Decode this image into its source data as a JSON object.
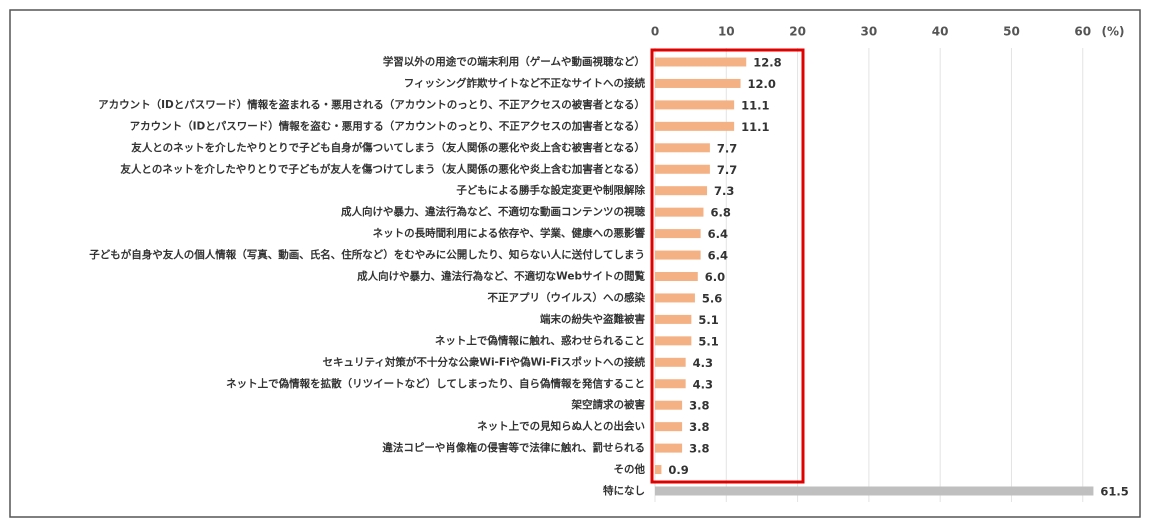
{
  "chart_data": {
    "type": "bar",
    "orientation": "horizontal",
    "unit_label": "(%)",
    "categories": [
      "学習以外の用途での端末利用（ゲームや動画視聴など）",
      "フィッシング詐欺サイトなど不正なサイトへの接続",
      "アカウント（IDとパスワード）情報を盗まれる・悪用される（アカウントのっとり、不正アクセスの被害者となる）",
      "アカウント（IDとパスワード）情報を盗む・悪用する（アカウントのっとり、不正アクセスの加害者となる）",
      "友人とのネットを介したやりとりで子ども自身が傷ついてしまう（友人関係の悪化や炎上含む被害者となる）",
      "友人とのネットを介したやりとりで子どもが友人を傷つけてしまう（友人関係の悪化や炎上含む加害者となる）",
      "子どもによる勝手な設定変更や制限解除",
      "成人向けや暴力、違法行為など、不適切な動画コンテンツの視聴",
      "ネットの長時間利用による依存や、学業、健康への悪影響",
      "子どもが自身や友人の個人情報（写真、動画、氏名、住所など）をむやみに公開したり、知らない人に送付してしまう",
      "成人向けや暴力、違法行為など、不適切なWebサイトの閲覧",
      "不正アプリ（ウイルス）への感染",
      "端末の紛失や盗難被害",
      "ネット上で偽情報に触れ、惑わせられること",
      "セキュリティ対策が不十分な公衆Wi-Fiや偽Wi-Fiスポットへの接続",
      "ネット上で偽情報を拡散（リツイートなど）してしまったり、自ら偽情報を発信すること",
      "架空請求の被害",
      "ネット上での見知らぬ人との出会い",
      "違法コピーや肖像権の侵害等で法律に触れ、罰せられる",
      "その他",
      "特になし"
    ],
    "values": [
      12.8,
      12.0,
      11.1,
      11.1,
      7.7,
      7.7,
      7.3,
      6.8,
      6.4,
      6.4,
      6.0,
      5.6,
      5.1,
      5.1,
      4.3,
      4.3,
      3.8,
      3.8,
      3.8,
      0.9,
      61.5
    ],
    "value_labels": [
      "12.8",
      "12.0",
      "11.1",
      "11.1",
      "7.7",
      "7.7",
      "7.3",
      "6.8",
      "6.4",
      "6.4",
      "6.0",
      "5.6",
      "5.1",
      "5.1",
      "4.3",
      "4.3",
      "3.8",
      "3.8",
      "3.8",
      "0.9",
      "61.5"
    ],
    "colors": [
      "#f4b183",
      "#f4b183",
      "#f4b183",
      "#f4b183",
      "#f4b183",
      "#f4b183",
      "#f4b183",
      "#f4b183",
      "#f4b183",
      "#f4b183",
      "#f4b183",
      "#f4b183",
      "#f4b183",
      "#f4b183",
      "#f4b183",
      "#f4b183",
      "#f4b183",
      "#f4b183",
      "#f4b183",
      "#f4b183",
      "#bfbfbf"
    ],
    "xlim": [
      0,
      62
    ],
    "xticks": [
      0,
      10,
      20,
      30,
      40,
      50,
      60
    ],
    "grid": true
  }
}
